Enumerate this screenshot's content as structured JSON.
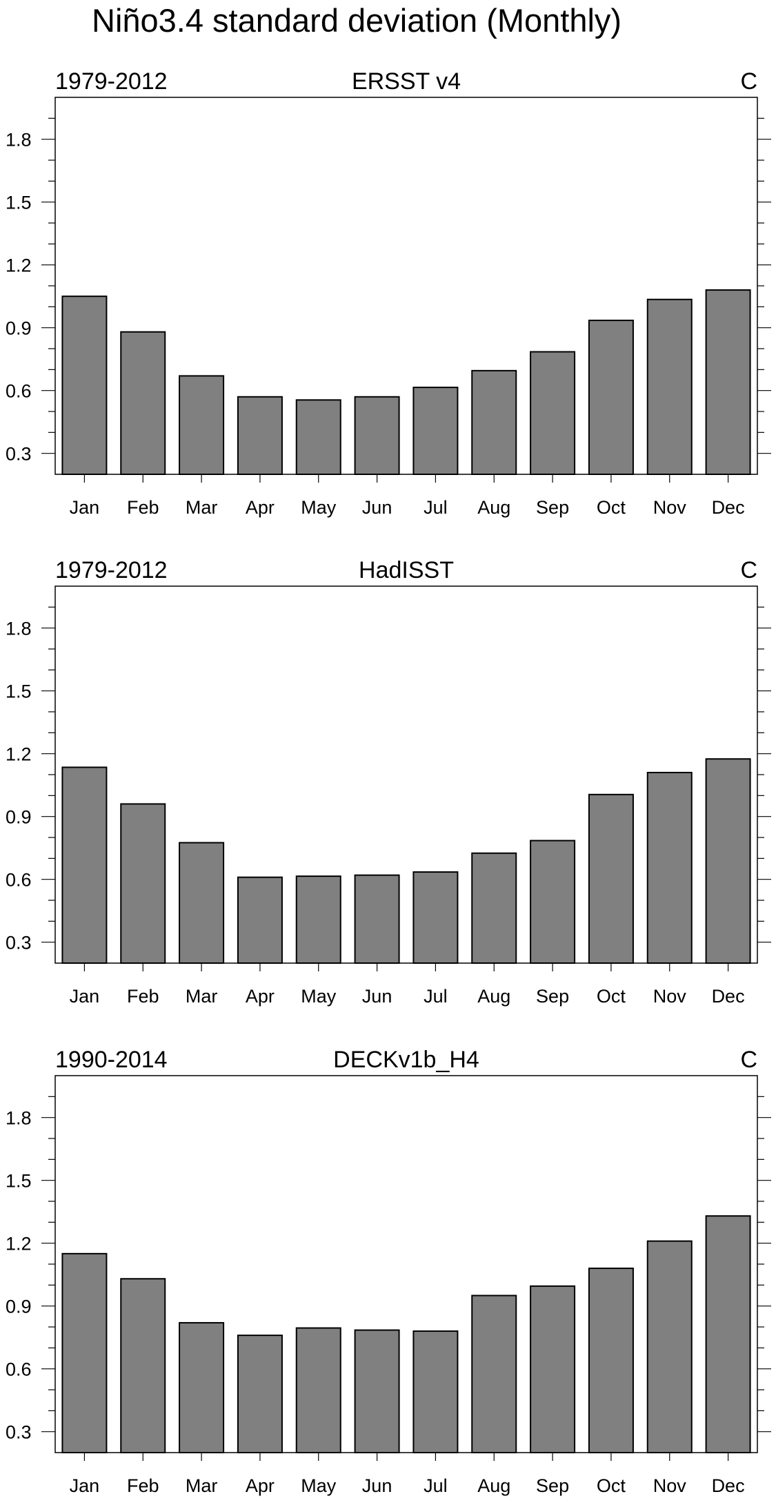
{
  "figure_title": "Niño3.4 standard deviation (Monthly)",
  "colors": {
    "bar_fill": "#808080",
    "bar_stroke": "#000000",
    "axis": "#000000",
    "background": "#ffffff"
  },
  "chart_data": [
    {
      "type": "bar",
      "title": "ERSST v4",
      "left_label": "1979-2012",
      "right_label": "C",
      "categories": [
        "Jan",
        "Feb",
        "Mar",
        "Apr",
        "May",
        "Jun",
        "Jul",
        "Aug",
        "Sep",
        "Oct",
        "Nov",
        "Dec"
      ],
      "values": [
        1.05,
        0.88,
        0.67,
        0.57,
        0.555,
        0.57,
        0.615,
        0.695,
        0.785,
        0.935,
        1.035,
        1.08
      ],
      "ylim": [
        0.2,
        2.0
      ],
      "yticks": [
        0.3,
        0.6,
        0.9,
        1.2,
        1.5,
        1.8
      ],
      "ytick_labels": [
        "0.3",
        "0.6",
        "0.9",
        "1.2",
        "1.5",
        "1.8"
      ],
      "xlabel": "",
      "ylabel": "",
      "grid": false
    },
    {
      "type": "bar",
      "title": "HadISST",
      "left_label": "1979-2012",
      "right_label": "C",
      "categories": [
        "Jan",
        "Feb",
        "Mar",
        "Apr",
        "May",
        "Jun",
        "Jul",
        "Aug",
        "Sep",
        "Oct",
        "Nov",
        "Dec"
      ],
      "values": [
        1.135,
        0.96,
        0.775,
        0.61,
        0.615,
        0.62,
        0.635,
        0.725,
        0.785,
        1.005,
        1.11,
        1.175
      ],
      "ylim": [
        0.2,
        2.0
      ],
      "yticks": [
        0.3,
        0.6,
        0.9,
        1.2,
        1.5,
        1.8
      ],
      "ytick_labels": [
        "0.3",
        "0.6",
        "0.9",
        "1.2",
        "1.5",
        "1.8"
      ],
      "xlabel": "",
      "ylabel": "",
      "grid": false
    },
    {
      "type": "bar",
      "title": "DECKv1b_H4",
      "left_label": "1990-2014",
      "right_label": "C",
      "categories": [
        "Jan",
        "Feb",
        "Mar",
        "Apr",
        "May",
        "Jun",
        "Jul",
        "Aug",
        "Sep",
        "Oct",
        "Nov",
        "Dec"
      ],
      "values": [
        1.15,
        1.03,
        0.82,
        0.76,
        0.795,
        0.785,
        0.78,
        0.95,
        0.995,
        1.08,
        1.21,
        1.33
      ],
      "ylim": [
        0.2,
        2.0
      ],
      "yticks": [
        0.3,
        0.6,
        0.9,
        1.2,
        1.5,
        1.8
      ],
      "ytick_labels": [
        "0.3",
        "0.6",
        "0.9",
        "1.2",
        "1.5",
        "1.8"
      ],
      "xlabel": "",
      "ylabel": "",
      "grid": false
    }
  ]
}
